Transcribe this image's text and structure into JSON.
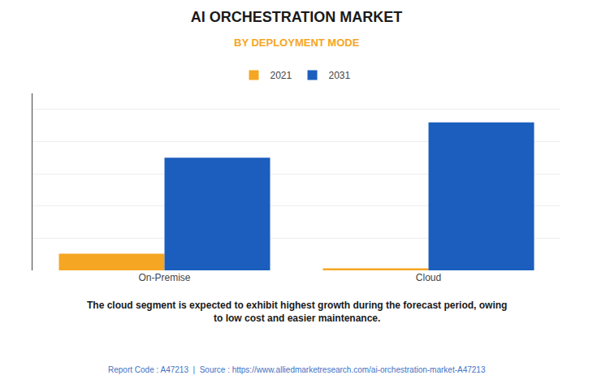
{
  "chart_data": {
    "type": "bar",
    "title": "AI ORCHESTRATION MARKET",
    "subtitle": "BY DEPLOYMENT MODE",
    "categories": [
      "On-Premise",
      "Cloud"
    ],
    "series": [
      {
        "name": "2021",
        "color": "#F5A623",
        "values": [
          0.52,
          0.06
        ]
      },
      {
        "name": "2031",
        "color": "#1B5EBE",
        "values": [
          3.5,
          4.6
        ]
      }
    ],
    "ylim": [
      0,
      5.5
    ],
    "yticks": [
      0,
      1,
      2,
      3,
      4,
      5
    ],
    "grid": true,
    "legend": "top",
    "tick_labels": "x",
    "annotations": [
      "The cloud segment is expected to exhibit highest growth during the forecast period, owing\nto low cost and easier maintenance.",
      "Report Code : A47213  |  Source : https://www.alliedmarketresearch.com/ai-orchestration-market-A47213"
    ]
  }
}
